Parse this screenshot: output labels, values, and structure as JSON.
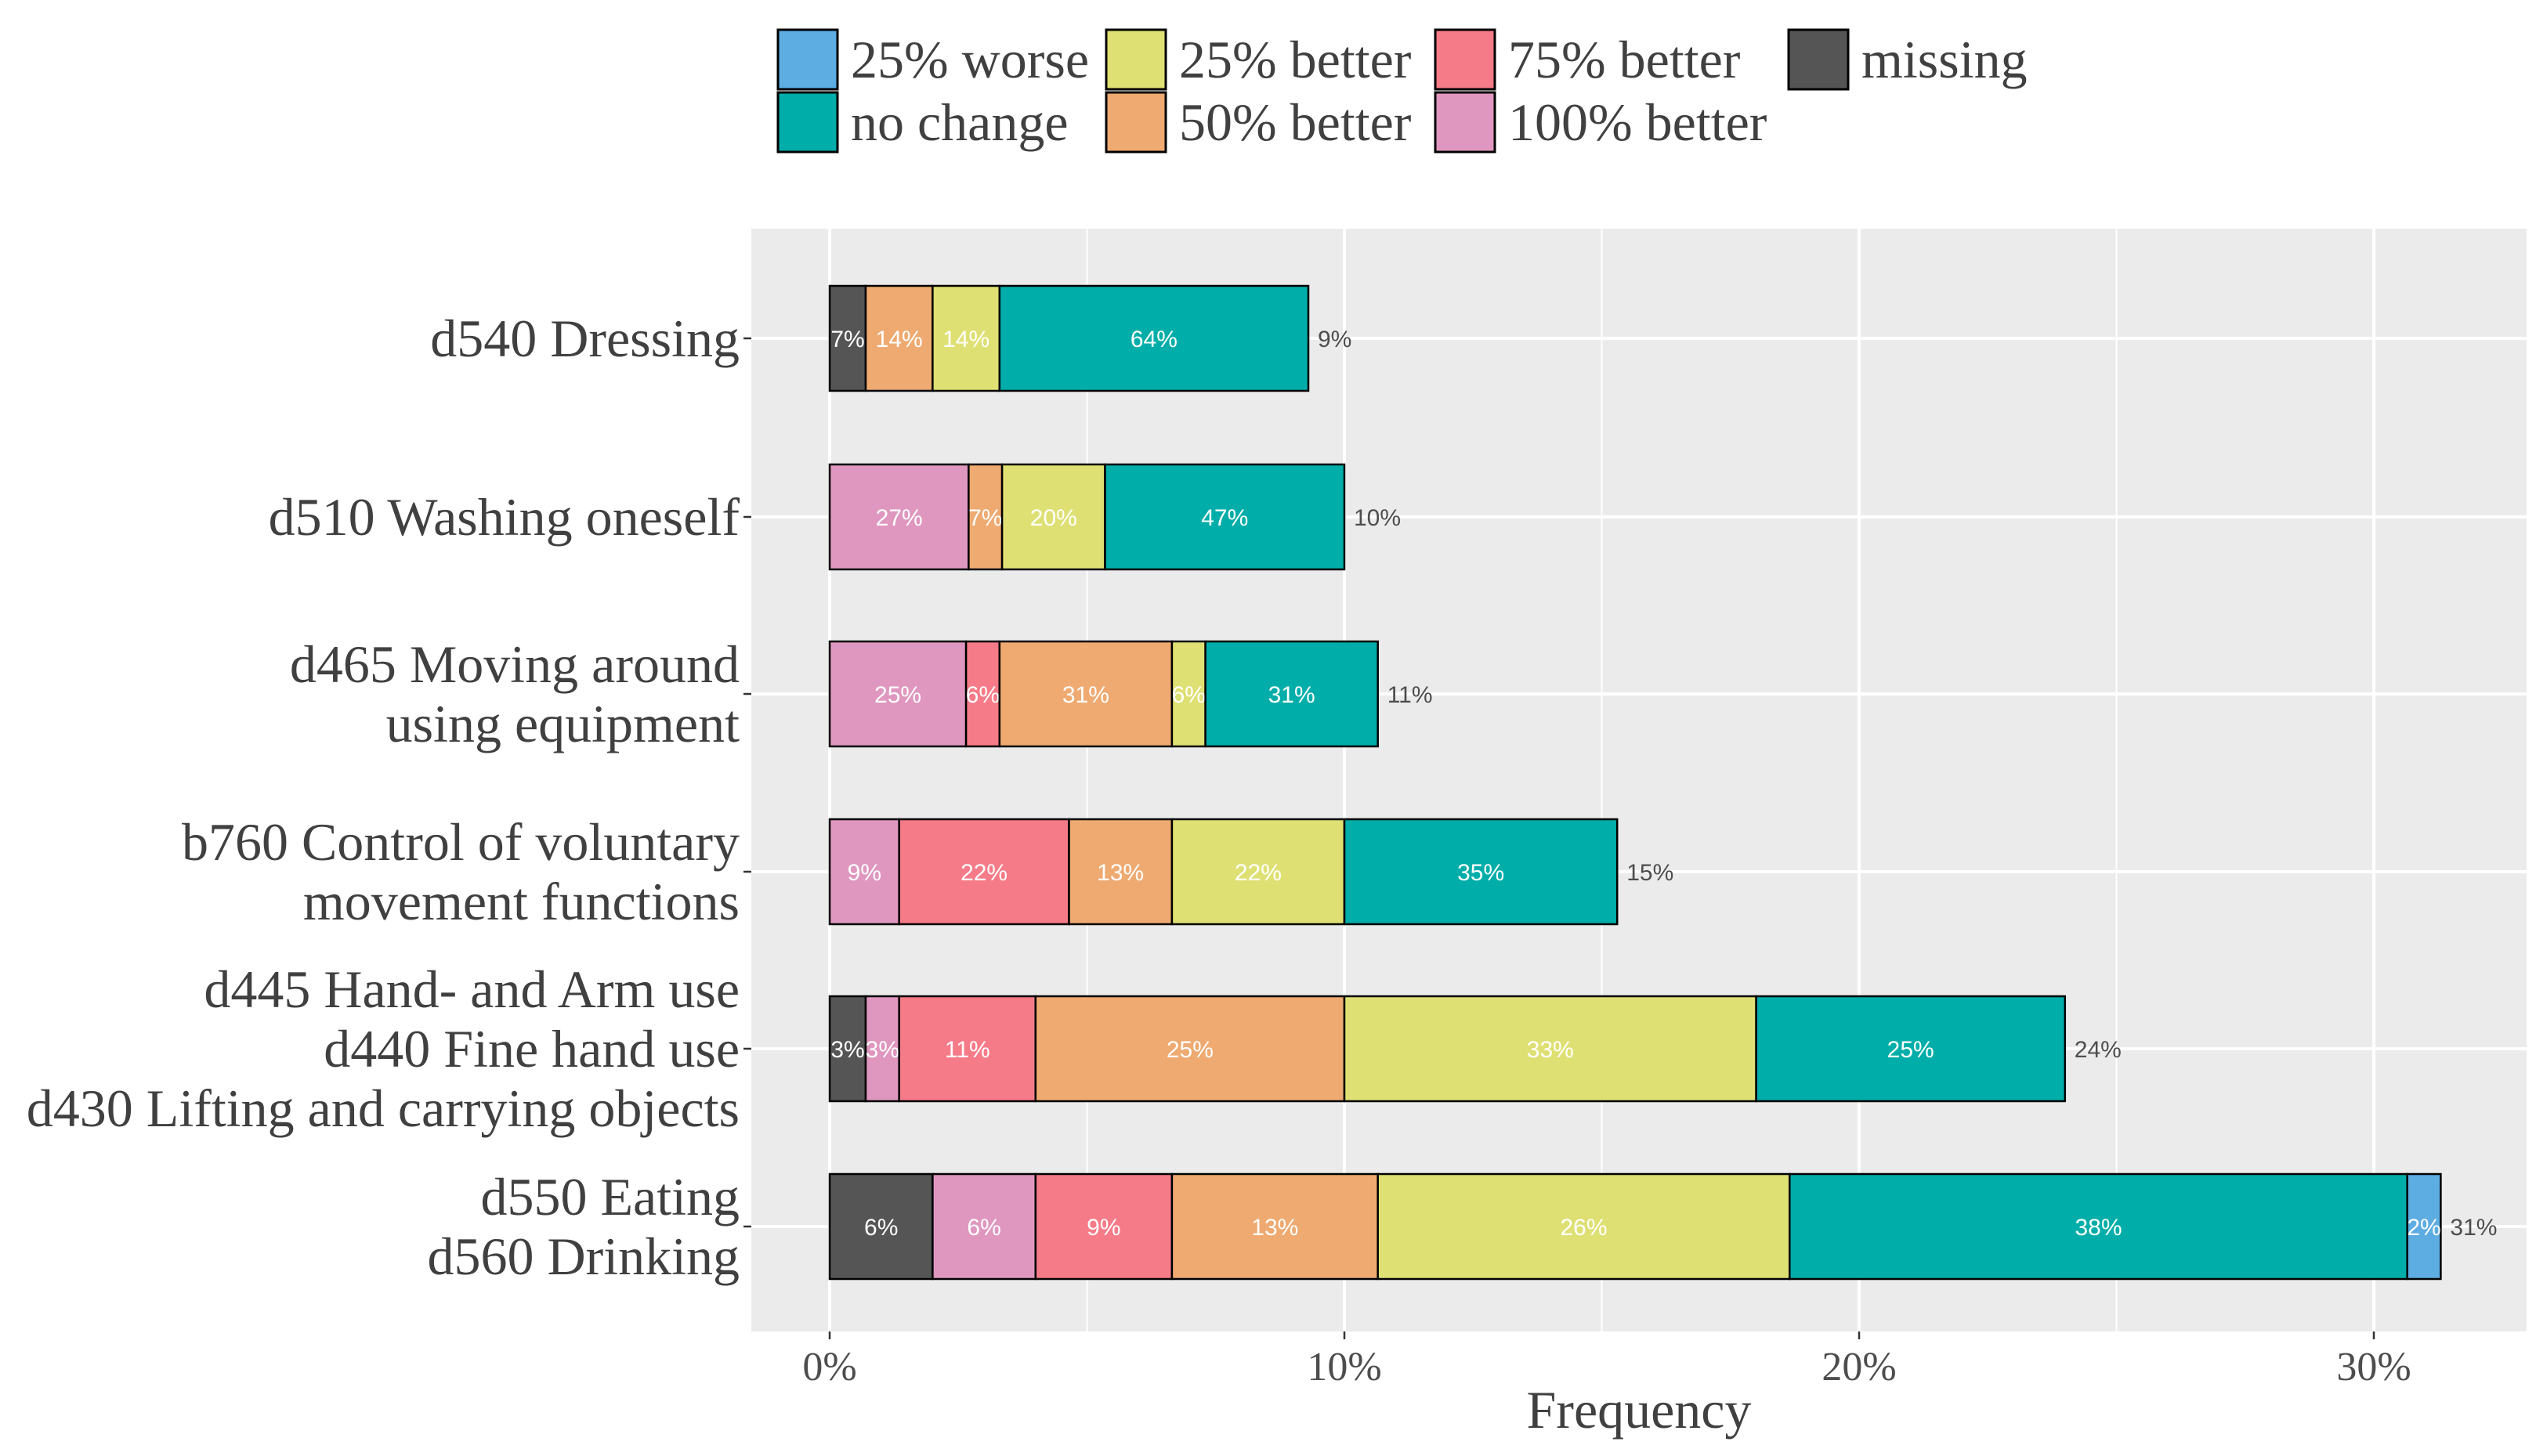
{
  "chart_data": {
    "type": "bar",
    "orientation": "horizontal",
    "stacked": true,
    "title": "",
    "xlabel": "Frequency",
    "ylabel": "",
    "xlim": [
      -1.5,
      32.5
    ],
    "x_ticks": [
      0,
      10,
      20,
      30
    ],
    "x_tick_labels": [
      "0%",
      "10%",
      "20%",
      "30%"
    ],
    "grid": true,
    "legend_position": "top",
    "legend": [
      {
        "key": "worse25",
        "label": "25% worse",
        "color": "#5DADE2"
      },
      {
        "key": "nochange",
        "label": "no change",
        "color": "#00ADA9"
      },
      {
        "key": "better25",
        "label": "25% better",
        "color": "#DFE074"
      },
      {
        "key": "better50",
        "label": "50% better",
        "color": "#EEAA71"
      },
      {
        "key": "better75",
        "label": "75% better",
        "color": "#F67B88"
      },
      {
        "key": "better100",
        "label": "100% better",
        "color": "#DF97BF"
      },
      {
        "key": "missing",
        "label": "missing",
        "color": "#555555"
      }
    ],
    "stack_order": [
      "missing",
      "better100",
      "better75",
      "better50",
      "better25",
      "nochange",
      "worse25"
    ],
    "categories": [
      {
        "label_lines": [
          "d540 Dressing"
        ],
        "total": 9.3,
        "total_label": "9%",
        "segments": [
          {
            "key": "missing",
            "value": 0.7,
            "label": "7%"
          },
          {
            "key": "better50",
            "value": 1.3,
            "label": "14%"
          },
          {
            "key": "better25",
            "value": 1.3,
            "label": "14%"
          },
          {
            "key": "nochange",
            "value": 6.0,
            "label": "64%"
          }
        ]
      },
      {
        "label_lines": [
          "d510 Washing oneself"
        ],
        "total": 10.0,
        "total_label": "10%",
        "segments": [
          {
            "key": "better100",
            "value": 2.7,
            "label": "27%"
          },
          {
            "key": "better50",
            "value": 0.65,
            "label": "7%"
          },
          {
            "key": "better25",
            "value": 2.0,
            "label": "20%"
          },
          {
            "key": "nochange",
            "value": 4.65,
            "label": "47%"
          }
        ]
      },
      {
        "label_lines": [
          "d465 Moving around",
          "using equipment"
        ],
        "total": 10.65,
        "total_label": "11%",
        "segments": [
          {
            "key": "better100",
            "value": 2.65,
            "label": "25%"
          },
          {
            "key": "better75",
            "value": 0.65,
            "label": "6%"
          },
          {
            "key": "better50",
            "value": 3.35,
            "label": "31%"
          },
          {
            "key": "better25",
            "value": 0.65,
            "label": "6%"
          },
          {
            "key": "nochange",
            "value": 3.35,
            "label": "31%"
          }
        ]
      },
      {
        "label_lines": [
          "b760 Control of voluntary",
          "movement functions"
        ],
        "total": 15.3,
        "total_label": "15%",
        "segments": [
          {
            "key": "better100",
            "value": 1.35,
            "label": "9%"
          },
          {
            "key": "better75",
            "value": 3.3,
            "label": "22%"
          },
          {
            "key": "better50",
            "value": 2.0,
            "label": "13%"
          },
          {
            "key": "better25",
            "value": 3.35,
            "label": "22%"
          },
          {
            "key": "nochange",
            "value": 5.3,
            "label": "35%"
          }
        ]
      },
      {
        "label_lines": [
          "d445 Hand- and Arm use",
          "d440 Fine hand use",
          "d430 Lifting and carrying objects"
        ],
        "total": 24.0,
        "total_label": "24%",
        "segments": [
          {
            "key": "missing",
            "value": 0.7,
            "label": "3%"
          },
          {
            "key": "better100",
            "value": 0.65,
            "label": "3%"
          },
          {
            "key": "better75",
            "value": 2.65,
            "label": "11%"
          },
          {
            "key": "better50",
            "value": 6.0,
            "label": "25%"
          },
          {
            "key": "better25",
            "value": 8.0,
            "label": "33%"
          },
          {
            "key": "nochange",
            "value": 6.0,
            "label": "25%"
          }
        ]
      },
      {
        "label_lines": [
          "d550 Eating",
          "d560 Drinking"
        ],
        "total": 31.3,
        "total_label": "31%",
        "segments": [
          {
            "key": "missing",
            "value": 2.0,
            "label": "6%"
          },
          {
            "key": "better100",
            "value": 2.0,
            "label": "6%"
          },
          {
            "key": "better75",
            "value": 2.65,
            "label": "9%"
          },
          {
            "key": "better50",
            "value": 4.0,
            "label": "13%"
          },
          {
            "key": "better25",
            "value": 8.0,
            "label": "26%"
          },
          {
            "key": "nochange",
            "value": 12.0,
            "label": "38%"
          },
          {
            "key": "worse25",
            "value": 0.65,
            "label": "2%"
          }
        ]
      }
    ]
  }
}
